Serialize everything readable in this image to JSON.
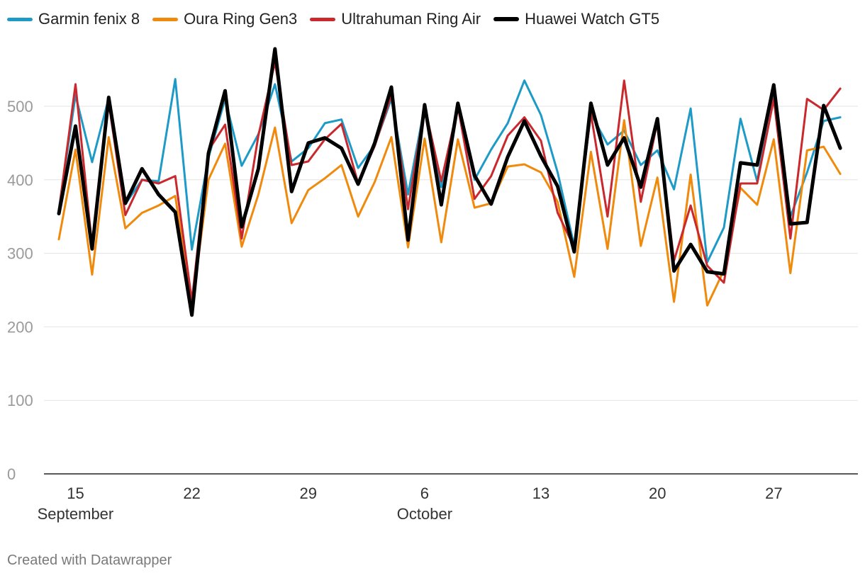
{
  "chart_data": {
    "type": "line",
    "title": "",
    "xlabel": "",
    "ylabel": "",
    "ylim": [
      0,
      580
    ],
    "yticks": [
      0,
      100,
      200,
      300,
      400,
      500
    ],
    "grid": true,
    "legend_position": "top-left",
    "x_start_day": 14,
    "x_tick_days": [
      15,
      22,
      29,
      36,
      43,
      50,
      57
    ],
    "x_tick_labels": [
      "15",
      "22",
      "29",
      "6",
      "13",
      "20",
      "27"
    ],
    "month_labels": [
      {
        "day": 15,
        "label": "September"
      },
      {
        "day": 36,
        "label": "October"
      }
    ],
    "series": [
      {
        "name": "Garmin fenix 8",
        "color": "#1d9ac6",
        "bold": false,
        "values": [
          360,
          515,
          424,
          511,
          367,
          400,
          398,
          537,
          305,
          430,
          510,
          419,
          462,
          530,
          425,
          443,
          477,
          482,
          416,
          447,
          510,
          380,
          500,
          390,
          500,
          400,
          441,
          477,
          535,
          488,
          410,
          310,
          490,
          448,
          467,
          420,
          440,
          387,
          497,
          288,
          335,
          483,
          398,
          517,
          350,
          410,
          480,
          485
        ]
      },
      {
        "name": "Oura Ring Gen3",
        "color": "#f08a0c",
        "bold": false,
        "values": [
          319,
          441,
          271,
          458,
          334,
          355,
          365,
          378,
          225,
          400,
          449,
          309,
          380,
          471,
          341,
          386,
          402,
          420,
          350,
          397,
          458,
          308,
          456,
          315,
          455,
          362,
          368,
          418,
          421,
          410,
          370,
          268,
          438,
          306,
          481,
          310,
          403,
          234,
          407,
          229,
          277,
          389,
          366,
          455,
          273,
          440,
          445,
          408
        ]
      },
      {
        "name": "Ultrahuman Ring Air",
        "color": "#c9282d",
        "bold": false,
        "values": [
          357,
          530,
          310,
          505,
          352,
          400,
          395,
          405,
          235,
          440,
          475,
          320,
          460,
          560,
          420,
          425,
          455,
          476,
          395,
          446,
          515,
          360,
          500,
          398,
          500,
          374,
          405,
          460,
          485,
          453,
          355,
          308,
          490,
          350,
          535,
          370,
          479,
          290,
          365,
          283,
          260,
          395,
          395,
          510,
          320,
          510,
          495,
          524
        ]
      },
      {
        "name": "Huawei Watch GT5",
        "color": "#000000",
        "bold": true,
        "values": [
          354,
          473,
          306,
          512,
          368,
          415,
          380,
          356,
          216,
          436,
          521,
          336,
          415,
          578,
          384,
          450,
          457,
          443,
          394,
          450,
          526,
          318,
          502,
          366,
          504,
          406,
          367,
          431,
          480,
          432,
          391,
          302,
          504,
          420,
          457,
          390,
          483,
          276,
          312,
          275,
          272,
          423,
          420,
          529,
          340,
          342,
          501,
          443
        ]
      }
    ]
  },
  "footer": {
    "credit": "Created with Datawrapper"
  }
}
